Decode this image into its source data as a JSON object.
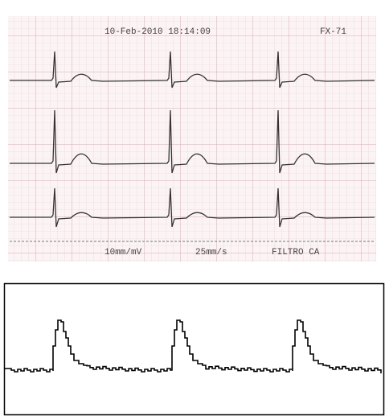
{
  "header": {
    "datetime": "10-Feb-2010 18:14:09",
    "device": "FX-71"
  },
  "footer": {
    "gain": "10mm/mV",
    "speed": "25mm/s",
    "filter": "FILTRO CA"
  }
}
